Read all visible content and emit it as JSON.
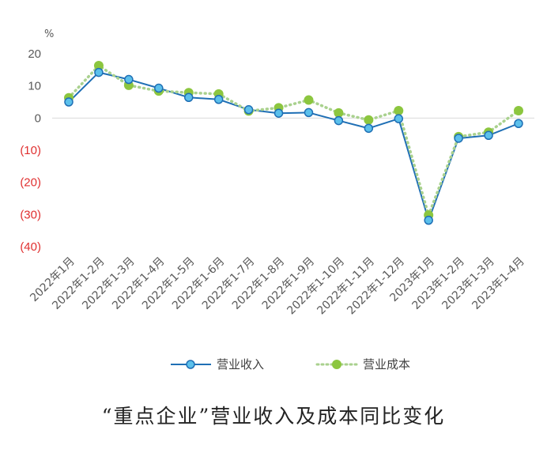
{
  "chart_data": {
    "type": "line",
    "title": "“重点企业”营业收入及成本同比变化",
    "unit_label": "%",
    "categories": [
      "2022年1月",
      "2022年1-2月",
      "2022年1-3月",
      "2022年1-4月",
      "2022年1-5月",
      "2022年1-6月",
      "2022年1-7月",
      "2022年1-8月",
      "2022年1-9月",
      "2022年1-10月",
      "2022年1-11月",
      "2022年1-12月",
      "2023年1月",
      "2023年1-2月",
      "2023年1-3月",
      "2023年1-4月"
    ],
    "ylim": [
      -40,
      20
    ],
    "yticks": [
      {
        "value": 20,
        "label": "20"
      },
      {
        "value": 10,
        "label": "10"
      },
      {
        "value": 0,
        "label": "0"
      },
      {
        "value": -10,
        "label": "(10)"
      },
      {
        "value": -20,
        "label": "(20)"
      },
      {
        "value": -30,
        "label": "(30)"
      },
      {
        "value": -40,
        "label": "(40)"
      }
    ],
    "negative_tick_color": "#E03030",
    "positive_tick_color": "#595959",
    "grid": false,
    "legend_position": "bottom",
    "series": [
      {
        "name": "营业收入",
        "style": "solid",
        "color": "#1F6FB5",
        "marker_fill": "#5BC0EB",
        "values": [
          5.0,
          14.2,
          12.0,
          9.3,
          6.4,
          5.8,
          2.6,
          1.5,
          1.7,
          -0.8,
          -3.2,
          -0.2,
          -31.8,
          -6.3,
          -5.4,
          -1.7
        ]
      },
      {
        "name": "营业成本",
        "style": "dotted",
        "color": "#A9D18E",
        "marker_fill": "#8CC63F",
        "values": [
          6.3,
          16.3,
          10.2,
          8.4,
          7.9,
          7.5,
          2.2,
          3.2,
          5.6,
          1.6,
          -0.6,
          2.3,
          -30.2,
          -5.8,
          -4.4,
          2.3
        ]
      }
    ]
  }
}
